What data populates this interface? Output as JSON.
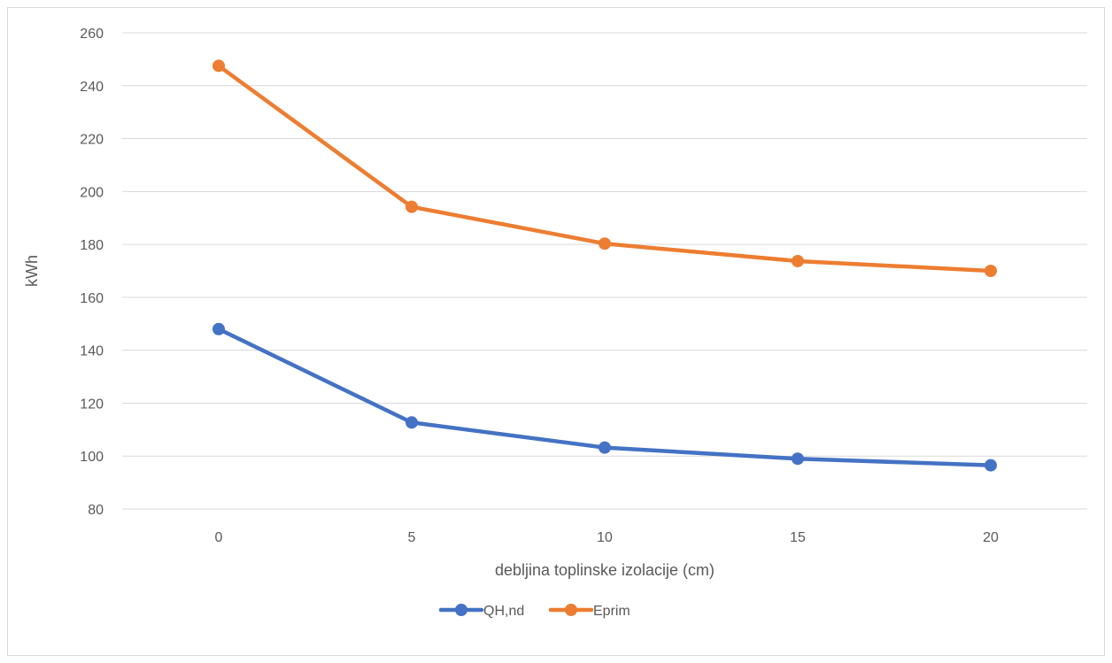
{
  "chart_data": {
    "type": "line",
    "title": "",
    "xlabel": "debljina toplinske izolacije (cm)",
    "ylabel": "kWh",
    "x": [
      0,
      5,
      10,
      15,
      20
    ],
    "categories": [
      "0",
      "5",
      "10",
      "15",
      "20"
    ],
    "ylim": [
      80,
      260
    ],
    "yticks": [
      80,
      100,
      120,
      140,
      160,
      180,
      200,
      220,
      240,
      260
    ],
    "grid": true,
    "legend_position": "bottom",
    "series": [
      {
        "name": "QH,nd",
        "color": "#4472c4",
        "values": [
          148,
          112.7,
          103.2,
          99,
          96.5
        ]
      },
      {
        "name": "Eprim",
        "color": "#ed7d31",
        "values": [
          247.5,
          194.2,
          180.3,
          173.7,
          170
        ]
      }
    ]
  }
}
